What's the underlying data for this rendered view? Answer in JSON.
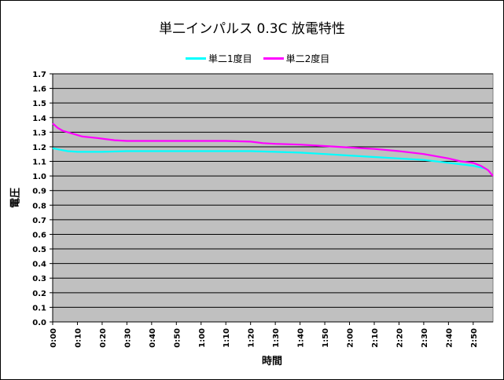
{
  "chart_data": {
    "type": "line",
    "title": "単二インパルス 0.3C 放電特性",
    "xlabel": "時間",
    "ylabel": "電圧",
    "ylim": [
      0.0,
      1.7
    ],
    "yticks": [
      "0.0",
      "0.1",
      "0.2",
      "0.3",
      "0.4",
      "0.5",
      "0.6",
      "0.7",
      "0.8",
      "0.9",
      "1.0",
      "1.1",
      "1.2",
      "1.3",
      "1.4",
      "1.5",
      "1.6",
      "1.7"
    ],
    "categories": [
      "0:00",
      "0:10",
      "0:20",
      "0:30",
      "0:40",
      "0:50",
      "1:00",
      "1:10",
      "1:20",
      "1:30",
      "1:40",
      "1:50",
      "2:00",
      "2:10",
      "2:20",
      "2:30",
      "2:40",
      "2:50"
    ],
    "grid": true,
    "legend_position": "top",
    "background_color": "#c0c0c0",
    "series": [
      {
        "name": "単二1度目",
        "color": "#00ffff",
        "x": [
          0,
          3,
          6,
          10,
          15,
          20,
          30,
          40,
          50,
          60,
          70,
          80,
          90,
          100,
          110,
          120,
          130,
          140,
          150,
          160,
          170,
          175
        ],
        "values": [
          1.19,
          1.18,
          1.17,
          1.165,
          1.165,
          1.165,
          1.17,
          1.17,
          1.17,
          1.17,
          1.17,
          1.17,
          1.165,
          1.16,
          1.15,
          1.14,
          1.13,
          1.12,
          1.11,
          1.09,
          1.07,
          1.05
        ]
      },
      {
        "name": "単二2度目",
        "color": "#ff00ff",
        "x": [
          0,
          2,
          4,
          8,
          12,
          18,
          25,
          30,
          40,
          50,
          60,
          70,
          80,
          85,
          90,
          100,
          110,
          120,
          130,
          140,
          150,
          160,
          165,
          170,
          173,
          176,
          178
        ],
        "values": [
          1.36,
          1.33,
          1.31,
          1.29,
          1.27,
          1.26,
          1.245,
          1.24,
          1.24,
          1.24,
          1.24,
          1.24,
          1.235,
          1.225,
          1.22,
          1.215,
          1.205,
          1.195,
          1.185,
          1.17,
          1.15,
          1.12,
          1.1,
          1.09,
          1.07,
          1.04,
          1.0
        ]
      }
    ]
  }
}
